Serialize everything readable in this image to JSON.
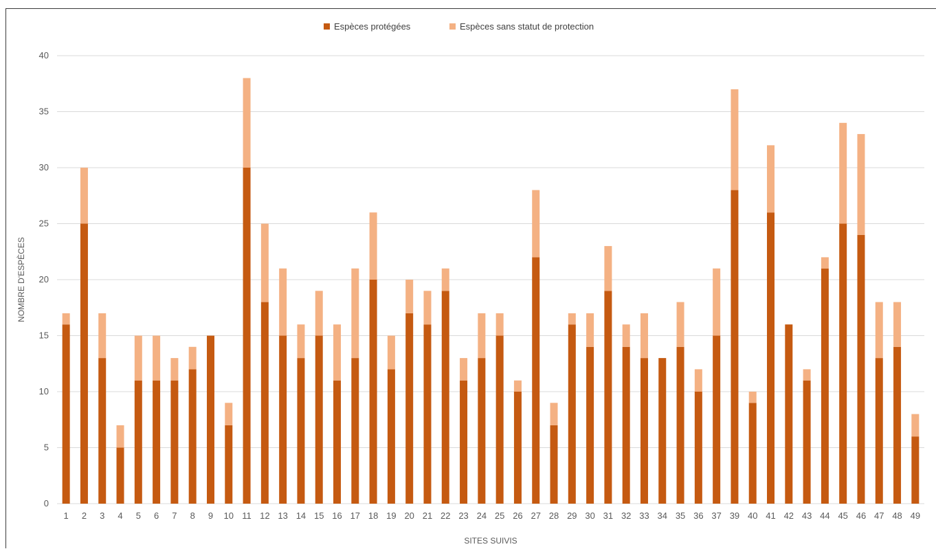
{
  "chart_data": {
    "type": "bar",
    "stacked": true,
    "xlabel": "SITES SUIVIS",
    "ylabel": "NOMBRE D'ESPÈCES",
    "ylim": [
      0,
      40
    ],
    "yticks": [
      0,
      5,
      10,
      15,
      20,
      25,
      30,
      35,
      40
    ],
    "grid": true,
    "legend_position": "top-center",
    "categories": [
      "1",
      "2",
      "3",
      "4",
      "5",
      "6",
      "7",
      "8",
      "9",
      "10",
      "11",
      "12",
      "13",
      "14",
      "15",
      "16",
      "17",
      "18",
      "19",
      "20",
      "21",
      "22",
      "23",
      "24",
      "25",
      "26",
      "27",
      "28",
      "29",
      "30",
      "31",
      "32",
      "33",
      "34",
      "35",
      "36",
      "37",
      "39",
      "40",
      "41",
      "42",
      "43",
      "44",
      "45",
      "46",
      "47",
      "48",
      "49"
    ],
    "series": [
      {
        "name": "Espèces protégées",
        "color": "#c55a11",
        "values": [
          16,
          25,
          13,
          5,
          11,
          11,
          11,
          12,
          15,
          7,
          30,
          18,
          15,
          13,
          15,
          11,
          13,
          20,
          12,
          17,
          16,
          19,
          11,
          13,
          15,
          10,
          22,
          7,
          16,
          14,
          19,
          14,
          13,
          13,
          14,
          10,
          15,
          28,
          9,
          26,
          16,
          11,
          21,
          25,
          24,
          13,
          14,
          6
        ]
      },
      {
        "name": "Espèces sans statut de protection",
        "color": "#f4b183",
        "values": [
          1,
          5,
          4,
          2,
          4,
          4,
          2,
          2,
          0,
          2,
          8,
          7,
          6,
          3,
          4,
          5,
          8,
          6,
          3,
          3,
          3,
          2,
          2,
          4,
          2,
          1,
          6,
          2,
          1,
          3,
          4,
          2,
          4,
          0,
          4,
          2,
          6,
          9,
          1,
          6,
          0,
          1,
          1,
          9,
          9,
          5,
          4,
          2
        ]
      }
    ]
  }
}
